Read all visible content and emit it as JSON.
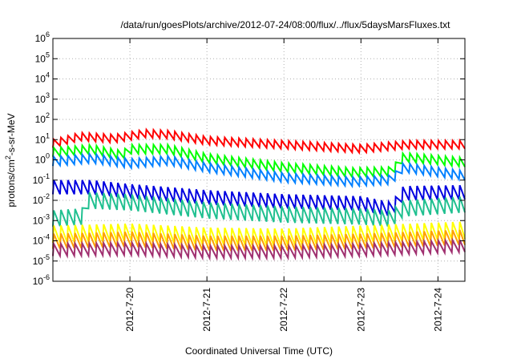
{
  "chart_data": {
    "type": "line",
    "title": "/data/run/goesPlots/archive/2012-07-24/08:00/flux/../flux/5daysMarsFluxes.txt",
    "xlabel": "Coordinated Universal Time (UTC)",
    "ylabel": {
      "base": "protons/cm",
      "sup": "2",
      "rest": "-s-sr-MeV"
    },
    "yscale": "log",
    "ylim_exp": [
      -6,
      6
    ],
    "xlim_days": [
      19.0,
      24.35
    ],
    "xticks": [
      {
        "day": 20,
        "label": "2012-7-20"
      },
      {
        "day": 21,
        "label": "2012-7-21"
      },
      {
        "day": 22,
        "label": "2012-7-22"
      },
      {
        "day": 23,
        "label": "2012-7-23"
      },
      {
        "day": 24,
        "label": "2012-7-24"
      }
    ],
    "grid": true,
    "legend": "none",
    "sawtooth": {
      "period_days": 0.0925,
      "rise_fraction": 0.12
    },
    "series": [
      {
        "color": "#ff0000",
        "low_exp": [
          [
            19.0,
            0.6
          ],
          [
            19.35,
            0.95
          ],
          [
            19.8,
            0.85
          ],
          [
            20.2,
            1.1
          ],
          [
            20.5,
            1.05
          ],
          [
            21.0,
            0.75
          ],
          [
            22.0,
            0.55
          ],
          [
            23.0,
            0.35
          ],
          [
            23.6,
            0.55
          ],
          [
            24.35,
            0.55
          ]
        ],
        "amp": 0.4
      },
      {
        "color": "#00ff00",
        "low_exp": [
          [
            19.0,
            0.15
          ],
          [
            19.5,
            0.3
          ],
          [
            19.9,
            0.0
          ],
          [
            20.0,
            0.3
          ],
          [
            20.5,
            0.3
          ],
          [
            21.0,
            -0.15
          ],
          [
            22.0,
            -0.6
          ],
          [
            22.9,
            -0.85
          ],
          [
            23.4,
            -0.8
          ],
          [
            23.55,
            -0.1
          ],
          [
            24.35,
            -0.35
          ]
        ],
        "amp": 0.45
      },
      {
        "color": "#0080ff",
        "low_exp": [
          [
            19.0,
            -0.3
          ],
          [
            19.5,
            -0.15
          ],
          [
            20.0,
            -0.4
          ],
          [
            20.5,
            -0.25
          ],
          [
            21.0,
            -0.6
          ],
          [
            22.0,
            -1.1
          ],
          [
            22.9,
            -1.3
          ],
          [
            23.4,
            -1.2
          ],
          [
            23.55,
            -0.6
          ],
          [
            24.35,
            -1.0
          ]
        ],
        "amp": 0.45
      },
      {
        "color": "#0000e0",
        "low_exp": [
          [
            19.0,
            -1.7
          ],
          [
            19.5,
            -1.7
          ],
          [
            20.0,
            -1.9
          ],
          [
            21.0,
            -2.2
          ],
          [
            22.0,
            -2.4
          ],
          [
            23.0,
            -2.5
          ],
          [
            23.4,
            -2.8
          ],
          [
            23.55,
            -2.0
          ],
          [
            24.35,
            -1.95
          ]
        ],
        "amp": 0.7
      },
      {
        "color": "#20c090",
        "low_exp": [
          [
            19.0,
            -3.3
          ],
          [
            19.38,
            -3.2
          ],
          [
            19.42,
            -2.4
          ],
          [
            20.0,
            -2.5
          ],
          [
            21.0,
            -2.9
          ],
          [
            22.0,
            -3.1
          ],
          [
            23.0,
            -3.2
          ],
          [
            23.4,
            -3.3
          ],
          [
            23.55,
            -2.8
          ],
          [
            24.35,
            -2.6
          ]
        ],
        "amp": 0.8
      },
      {
        "color": "#ffff00",
        "low_exp": [
          [
            19.0,
            -4.1
          ],
          [
            20.0,
            -4.0
          ],
          [
            21.0,
            -4.2
          ],
          [
            22.0,
            -4.25
          ],
          [
            23.0,
            -4.1
          ],
          [
            24.35,
            -3.9
          ]
        ],
        "amp": 0.85
      },
      {
        "color": "#ffa000",
        "low_exp": [
          [
            19.0,
            -4.4
          ],
          [
            20.0,
            -4.3
          ],
          [
            21.0,
            -4.5
          ],
          [
            22.0,
            -4.5
          ],
          [
            23.0,
            -4.4
          ],
          [
            24.35,
            -4.2
          ]
        ],
        "amp": 0.75
      },
      {
        "color": "#a03070",
        "low_exp": [
          [
            19.0,
            -4.75
          ],
          [
            20.0,
            -4.7
          ],
          [
            21.0,
            -4.85
          ],
          [
            22.0,
            -4.85
          ],
          [
            23.0,
            -4.75
          ],
          [
            24.35,
            -4.55
          ]
        ],
        "amp": 0.6
      }
    ]
  }
}
